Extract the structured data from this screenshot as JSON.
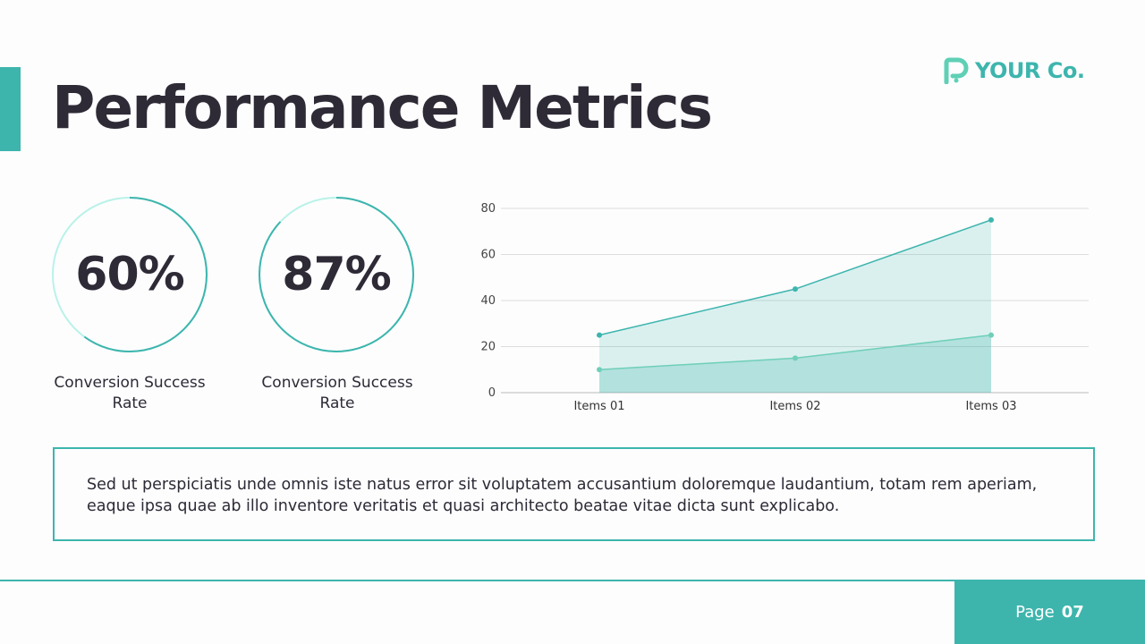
{
  "title": "Performance Metrics",
  "logo": {
    "text": "YOUR Co."
  },
  "colors": {
    "accent": "#3db5ad",
    "light": "#b9f2e8",
    "text": "#2e2a36"
  },
  "metrics": [
    {
      "value": "60%",
      "percent": 60,
      "label": "Conversion Success Rate"
    },
    {
      "value": "87%",
      "percent": 87,
      "label": "Conversion Success Rate"
    }
  ],
  "chart_data": {
    "type": "area",
    "categories": [
      "Items 01",
      "Items 02",
      "Items 03"
    ],
    "series": [
      {
        "values": [
          25,
          45,
          75
        ]
      },
      {
        "values": [
          10,
          15,
          25
        ]
      }
    ],
    "ylim": [
      0,
      80
    ],
    "yticks": [
      0,
      20,
      40,
      60,
      80
    ],
    "grid": true
  },
  "body_text": "Sed ut perspiciatis unde omnis iste natus error sit voluptatem accusantium doloremque laudantium, totam rem aperiam, eaque ipsa quae ab illo inventore veritatis et quasi architecto beatae vitae dicta sunt explicabo.",
  "footer": {
    "page_label": "Page",
    "page_number": "07"
  }
}
